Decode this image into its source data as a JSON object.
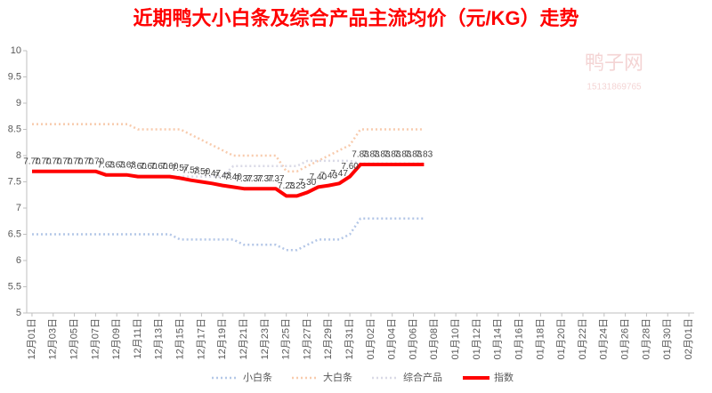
{
  "chart_data": {
    "type": "line",
    "title": "近期鸭大小白条及综合产品主流均价（元/KG）走势",
    "watermark": [
      "鸭子网",
      "15131869765"
    ],
    "categories": [
      "12月01日",
      null,
      "12月03日",
      null,
      "12月05日",
      null,
      "12月07日",
      null,
      "12月09日",
      null,
      "12月11日",
      null,
      "12月13日",
      null,
      "12月15日",
      null,
      "12月17日",
      null,
      "12月19日",
      null,
      "12月21日",
      null,
      "12月23日",
      null,
      "12月25日",
      null,
      "12月27日",
      null,
      "12月29日",
      null,
      "12月31日",
      null,
      "01月02日",
      null,
      "01月04日",
      null,
      "01月06日",
      null,
      "01月08日",
      null,
      "01月10日",
      null,
      "01月12日",
      null,
      "01月14日",
      null,
      "01月16日",
      null,
      "01月18日",
      null,
      "01月20日",
      null,
      "01月22日",
      null,
      "01月24日",
      null,
      "01月26日",
      null,
      "01月28日",
      null,
      "01月30日",
      null,
      "02月01日"
    ],
    "ylim": [
      5,
      10
    ],
    "yticks": [
      5,
      5.5,
      6,
      6.5,
      7,
      7.5,
      8,
      8.5,
      9,
      9.5,
      10
    ],
    "legend": "bottom",
    "series": [
      {
        "name": "小白条",
        "color": "#b4c7e7",
        "dashed": true,
        "values": [
          6.5,
          6.5,
          6.5,
          6.5,
          6.5,
          6.5,
          6.5,
          6.5,
          6.5,
          6.5,
          6.5,
          6.5,
          6.5,
          6.5,
          6.4,
          6.4,
          6.4,
          6.4,
          6.4,
          6.4,
          6.3,
          6.3,
          6.3,
          6.3,
          6.2,
          6.2,
          6.3,
          6.4,
          6.4,
          6.4,
          6.5,
          6.8,
          6.8,
          6.8,
          6.8,
          6.8,
          6.8,
          6.8,
          null,
          null,
          null,
          null,
          null,
          null,
          null,
          null,
          null,
          null,
          null,
          null,
          null,
          null,
          null,
          null,
          null,
          null,
          null,
          null,
          null,
          null,
          null,
          null,
          null
        ]
      },
      {
        "name": "大白条",
        "color": "#f8cbad",
        "dashed": true,
        "values": [
          8.6,
          8.6,
          8.6,
          8.6,
          8.6,
          8.6,
          8.6,
          8.6,
          8.6,
          8.6,
          8.5,
          8.5,
          8.5,
          8.5,
          8.5,
          8.4,
          8.3,
          8.2,
          8.1,
          8.0,
          8.0,
          8.0,
          8.0,
          8.0,
          7.7,
          7.7,
          7.8,
          7.9,
          8.0,
          8.1,
          8.2,
          8.5,
          8.5,
          8.5,
          8.5,
          8.5,
          8.5,
          8.5,
          null,
          null,
          null,
          null,
          null,
          null,
          null,
          null,
          null,
          null,
          null,
          null,
          null,
          null,
          null,
          null,
          null,
          null,
          null,
          null,
          null,
          null,
          null,
          null,
          null
        ]
      },
      {
        "name": "综合产品",
        "color": "#d9d9e6",
        "dashed": true,
        "values": [
          7.7,
          7.7,
          7.7,
          7.7,
          7.7,
          7.7,
          7.7,
          7.63,
          7.63,
          7.63,
          7.6,
          7.6,
          7.6,
          7.6,
          7.6,
          7.6,
          7.6,
          7.6,
          7.6,
          7.8,
          7.8,
          7.8,
          7.8,
          7.8,
          7.8,
          7.8,
          7.9,
          7.9,
          7.9,
          7.9,
          7.9,
          7.85,
          7.85,
          7.85,
          7.85,
          7.85,
          7.85,
          7.85,
          null,
          null,
          null,
          null,
          null,
          null,
          null,
          null,
          null,
          null,
          null,
          null,
          null,
          null,
          null,
          null,
          null,
          null,
          null,
          null,
          null,
          null,
          null,
          null,
          null
        ]
      },
      {
        "name": "指数",
        "color": "#ff0000",
        "dashed": false,
        "values": [
          7.7,
          7.7,
          7.7,
          7.7,
          7.7,
          7.7,
          7.7,
          7.63,
          7.63,
          7.63,
          7.6,
          7.6,
          7.6,
          7.6,
          7.57,
          7.53,
          7.5,
          7.47,
          7.43,
          7.4,
          7.37,
          7.37,
          7.37,
          7.37,
          7.23,
          7.23,
          7.3,
          7.4,
          7.43,
          7.47,
          7.6,
          7.83,
          7.83,
          7.83,
          7.83,
          7.83,
          7.83,
          7.83,
          null,
          null,
          null,
          null,
          null,
          null,
          null,
          null,
          null,
          null,
          null,
          null,
          null,
          null,
          null,
          null,
          null,
          null,
          null,
          null,
          null,
          null,
          null,
          null,
          null
        ],
        "value_labels": [
          "7.70",
          "7.70",
          "7.70",
          "7.70",
          "7.70",
          "7.70",
          "7.70",
          "7.63",
          "7.63",
          "7.63",
          "7.60",
          "7.60",
          "7.60",
          "7.60",
          "7.57",
          "7.53",
          "7.50",
          "7.47",
          "7.43",
          "7.40",
          "7.37",
          "7.37",
          "7.37",
          "7.37",
          "7.23",
          "7.23",
          "7.30",
          "7.40",
          "7.43",
          "7.47",
          "7.60",
          "7.83",
          "7.83",
          "7.83",
          "7.83",
          "7.83",
          "7.83",
          "7.83",
          null,
          null,
          null,
          null,
          null,
          null,
          null,
          null,
          null,
          null,
          null,
          null,
          null,
          null,
          null,
          null,
          null,
          null,
          null,
          null,
          null,
          null,
          null,
          null,
          null
        ]
      }
    ]
  }
}
